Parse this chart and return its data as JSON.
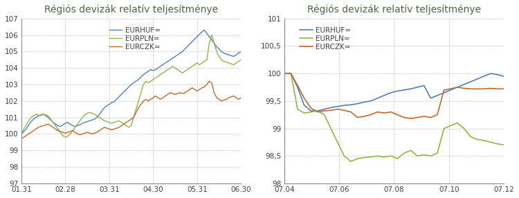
{
  "title": "Régiós devizák relatív teljesítménye",
  "colors": {
    "EURHUF": "#4e7fbd",
    "EURPLN": "#8db646",
    "EURCZK": "#c0672a"
  },
  "chart1": {
    "xticks": [
      "01.31",
      "02.28",
      "03.31",
      "04.30",
      "05.31",
      "06.30"
    ],
    "ylim": [
      97,
      107
    ],
    "yticks": [
      97,
      98,
      99,
      100,
      101,
      102,
      103,
      104,
      105,
      106,
      107
    ],
    "EURHUF": [
      100.0,
      100.15,
      100.3,
      100.55,
      100.75,
      100.9,
      101.0,
      101.1,
      101.15,
      101.2,
      101.1,
      101.0,
      100.85,
      100.7,
      100.6,
      100.5,
      100.45,
      100.55,
      100.65,
      100.7,
      100.6,
      100.5,
      100.45,
      100.5,
      100.55,
      100.65,
      100.7,
      100.75,
      100.8,
      100.85,
      100.9,
      101.0,
      101.2,
      101.4,
      101.6,
      101.7,
      101.8,
      101.9,
      101.95,
      102.1,
      102.25,
      102.4,
      102.55,
      102.7,
      102.85,
      103.0,
      103.1,
      103.2,
      103.3,
      103.45,
      103.6,
      103.7,
      103.8,
      103.9,
      103.85,
      103.9,
      104.0,
      104.1,
      104.2,
      104.3,
      104.4,
      104.5,
      104.6,
      104.7,
      104.8,
      104.9,
      105.0,
      105.15,
      105.3,
      105.45,
      105.6,
      105.75,
      105.9,
      106.05,
      106.2,
      106.3,
      106.1,
      105.9,
      105.7,
      105.5,
      105.3,
      105.15,
      105.0,
      104.9,
      104.85,
      104.8,
      104.75,
      104.7,
      104.8,
      104.9,
      105.0
    ],
    "EURPLN": [
      100.0,
      100.3,
      100.55,
      100.8,
      101.0,
      101.1,
      101.2,
      101.15,
      101.1,
      101.2,
      101.15,
      101.1,
      100.9,
      100.7,
      100.5,
      100.3,
      100.1,
      99.9,
      99.8,
      99.85,
      100.0,
      100.2,
      100.4,
      100.6,
      100.8,
      101.0,
      101.15,
      101.25,
      101.3,
      101.25,
      101.2,
      101.1,
      101.0,
      100.9,
      100.8,
      100.75,
      100.7,
      100.65,
      100.7,
      100.75,
      100.8,
      100.7,
      100.6,
      100.5,
      100.4,
      100.5,
      101.0,
      101.5,
      102.0,
      102.5,
      103.0,
      103.2,
      103.1,
      103.2,
      103.3,
      103.4,
      103.5,
      103.6,
      103.7,
      103.8,
      103.9,
      104.0,
      104.1,
      104.0,
      103.9,
      103.8,
      103.7,
      103.8,
      103.9,
      104.0,
      104.1,
      104.2,
      104.3,
      104.2,
      104.3,
      104.4,
      104.5,
      105.5,
      106.0,
      105.5,
      105.0,
      104.7,
      104.5,
      104.4,
      104.35,
      104.3,
      104.25,
      104.2,
      104.3,
      104.4,
      104.5
    ],
    "EURCZK": [
      99.7,
      99.8,
      99.9,
      100.0,
      100.1,
      100.2,
      100.3,
      100.4,
      100.45,
      100.5,
      100.55,
      100.6,
      100.5,
      100.4,
      100.3,
      100.2,
      100.15,
      100.1,
      100.05,
      100.1,
      100.15,
      100.2,
      100.1,
      100.0,
      99.95,
      100.0,
      100.05,
      100.1,
      100.05,
      100.0,
      100.05,
      100.1,
      100.2,
      100.3,
      100.4,
      100.35,
      100.3,
      100.25,
      100.3,
      100.35,
      100.4,
      100.5,
      100.6,
      100.7,
      100.8,
      100.9,
      101.0,
      101.3,
      101.6,
      101.8,
      102.0,
      102.1,
      102.0,
      102.1,
      102.2,
      102.3,
      102.2,
      102.1,
      102.2,
      102.3,
      102.4,
      102.5,
      102.45,
      102.4,
      102.45,
      102.5,
      102.45,
      102.5,
      102.6,
      102.7,
      102.8,
      102.7,
      102.6,
      102.7,
      102.8,
      102.85,
      103.0,
      103.2,
      103.1,
      102.5,
      102.2,
      102.1,
      102.0,
      102.05,
      102.1,
      102.2,
      102.25,
      102.3,
      102.2,
      102.1,
      102.2
    ]
  },
  "chart2": {
    "xticks": [
      "07.04",
      "07.06",
      "07.08",
      "07.10",
      "07.12"
    ],
    "ylim": [
      98.0,
      101.0
    ],
    "yticks": [
      98.0,
      98.5,
      99.0,
      99.5,
      100.0,
      100.5,
      101.0
    ],
    "ytick_labels": [
      "98",
      "98,5",
      "99",
      "99,5",
      "100",
      "100,5",
      "101"
    ],
    "EURHUF": [
      100.0,
      100.0,
      99.75,
      99.42,
      99.32,
      99.32,
      99.35,
      99.38,
      99.4,
      99.42,
      99.43,
      99.45,
      99.48,
      99.5,
      99.55,
      99.6,
      99.65,
      99.68,
      99.7,
      99.72,
      99.75,
      99.78,
      99.55,
      99.6,
      99.65,
      99.7,
      99.75,
      99.8,
      99.85,
      99.9,
      99.95,
      100.0,
      99.98,
      99.95
    ],
    "EURPLN": [
      100.0,
      100.0,
      99.35,
      99.28,
      99.3,
      99.32,
      99.25,
      99.0,
      98.75,
      98.5,
      98.4,
      98.45,
      98.47,
      98.48,
      98.5,
      98.48,
      98.5,
      98.45,
      98.55,
      98.6,
      98.5,
      98.52,
      98.5,
      98.55,
      99.0,
      99.05,
      99.1,
      99.0,
      98.85,
      98.8,
      98.78,
      98.75,
      98.72,
      98.7
    ],
    "EURCZK": [
      100.0,
      100.0,
      99.78,
      99.55,
      99.37,
      99.3,
      99.32,
      99.33,
      99.35,
      99.33,
      99.3,
      99.2,
      99.22,
      99.25,
      99.3,
      99.28,
      99.3,
      99.25,
      99.2,
      99.18,
      99.2,
      99.22,
      99.2,
      99.25,
      99.7,
      99.72,
      99.75,
      99.73,
      99.72,
      99.72,
      99.72,
      99.73,
      99.72,
      99.72
    ]
  },
  "background_color": "#ffffff",
  "grid_color": "#b0b0b0",
  "title_color": "#4a6741",
  "font_color": "#404040"
}
